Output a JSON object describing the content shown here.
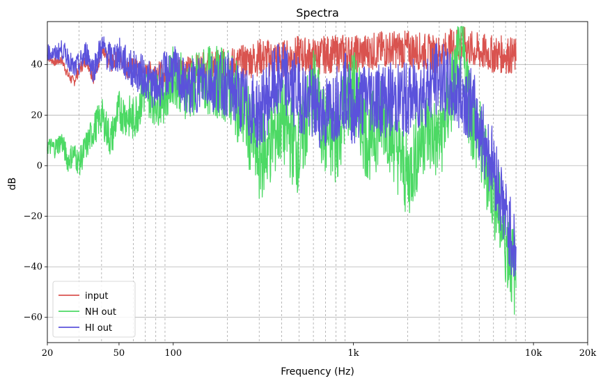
{
  "chart_data": {
    "type": "line",
    "title": "Spectra",
    "xlabel": "Frequency (Hz)",
    "ylabel": "dB",
    "xscale": "log",
    "xlim": [
      20,
      20000
    ],
    "ylim": [
      -70,
      57
    ],
    "x_ticks": [
      {
        "value": 20,
        "label": "20"
      },
      {
        "value": 50,
        "label": "50"
      },
      {
        "value": 100,
        "label": "100"
      },
      {
        "value": 1000,
        "label": "1k"
      },
      {
        "value": 10000,
        "label": "10k"
      },
      {
        "value": 20000,
        "label": "20k"
      }
    ],
    "y_ticks": [
      {
        "value": 40,
        "label": "40"
      },
      {
        "value": 20,
        "label": "20"
      },
      {
        "value": 0,
        "label": "0"
      },
      {
        "value": -20,
        "label": "−20"
      },
      {
        "value": -40,
        "label": "−40"
      },
      {
        "value": -60,
        "label": "−60"
      }
    ],
    "grid": {
      "y_major": true,
      "x_minor_dashed": true
    },
    "x_minor_grid": [
      30,
      40,
      60,
      70,
      80,
      90,
      200,
      300,
      400,
      500,
      600,
      700,
      800,
      900,
      2000,
      3000,
      4000,
      5000,
      6000,
      7000,
      8000,
      9000
    ],
    "legend_position": "lower-left",
    "series": [
      {
        "name": "input",
        "color": "#d9534f",
        "x": [
          20,
          22,
          24,
          26,
          28,
          30,
          33,
          36,
          40,
          45,
          50,
          55,
          60,
          70,
          80,
          90,
          100,
          120,
          150,
          200,
          250,
          300,
          400,
          500,
          600,
          700,
          800,
          900,
          1000,
          1200,
          1500,
          2000,
          2500,
          3000,
          3500,
          4000,
          4500,
          5000,
          6000,
          7000,
          8000
        ],
        "y": [
          43,
          41,
          42,
          36,
          33,
          38,
          42,
          35,
          45,
          40,
          43,
          38,
          39,
          36,
          38,
          35,
          40,
          38,
          39,
          40,
          41,
          43,
          42,
          44,
          43,
          44,
          44,
          45,
          44,
          45,
          46,
          46,
          45,
          44,
          47,
          48,
          46,
          45,
          44,
          44,
          43
        ]
      },
      {
        "name": "NH out",
        "color": "#4cd964",
        "x": [
          20,
          22,
          24,
          26,
          28,
          30,
          33,
          36,
          40,
          45,
          50,
          60,
          70,
          80,
          90,
          100,
          120,
          150,
          200,
          250,
          300,
          350,
          400,
          500,
          600,
          700,
          800,
          900,
          1000,
          1200,
          1500,
          2000,
          2500,
          3000,
          3500,
          4000,
          4500,
          5000,
          6000,
          7000,
          8000
        ],
        "y": [
          8,
          7,
          10,
          2,
          5,
          1,
          8,
          14,
          20,
          10,
          22,
          18,
          30,
          26,
          28,
          36,
          30,
          34,
          32,
          20,
          2,
          10,
          18,
          5,
          30,
          12,
          8,
          25,
          30,
          10,
          20,
          -5,
          15,
          10,
          28,
          46,
          20,
          10,
          -10,
          -30,
          -45
        ]
      },
      {
        "name": "HI out",
        "color": "#5b52db",
        "x": [
          20,
          22,
          24,
          26,
          28,
          30,
          33,
          36,
          40,
          45,
          50,
          55,
          60,
          70,
          80,
          90,
          100,
          120,
          150,
          200,
          250,
          300,
          350,
          400,
          500,
          600,
          700,
          800,
          900,
          1000,
          1200,
          1500,
          2000,
          2500,
          3000,
          3500,
          4000,
          4500,
          5000,
          6000,
          7000,
          8000
        ],
        "y": [
          45,
          44,
          46,
          43,
          38,
          40,
          45,
          38,
          47,
          42,
          44,
          40,
          38,
          35,
          30,
          36,
          38,
          30,
          34,
          32,
          25,
          20,
          30,
          35,
          28,
          24,
          20,
          25,
          30,
          22,
          28,
          26,
          26,
          30,
          35,
          30,
          28,
          25,
          15,
          0,
          -20,
          -35
        ]
      }
    ]
  }
}
